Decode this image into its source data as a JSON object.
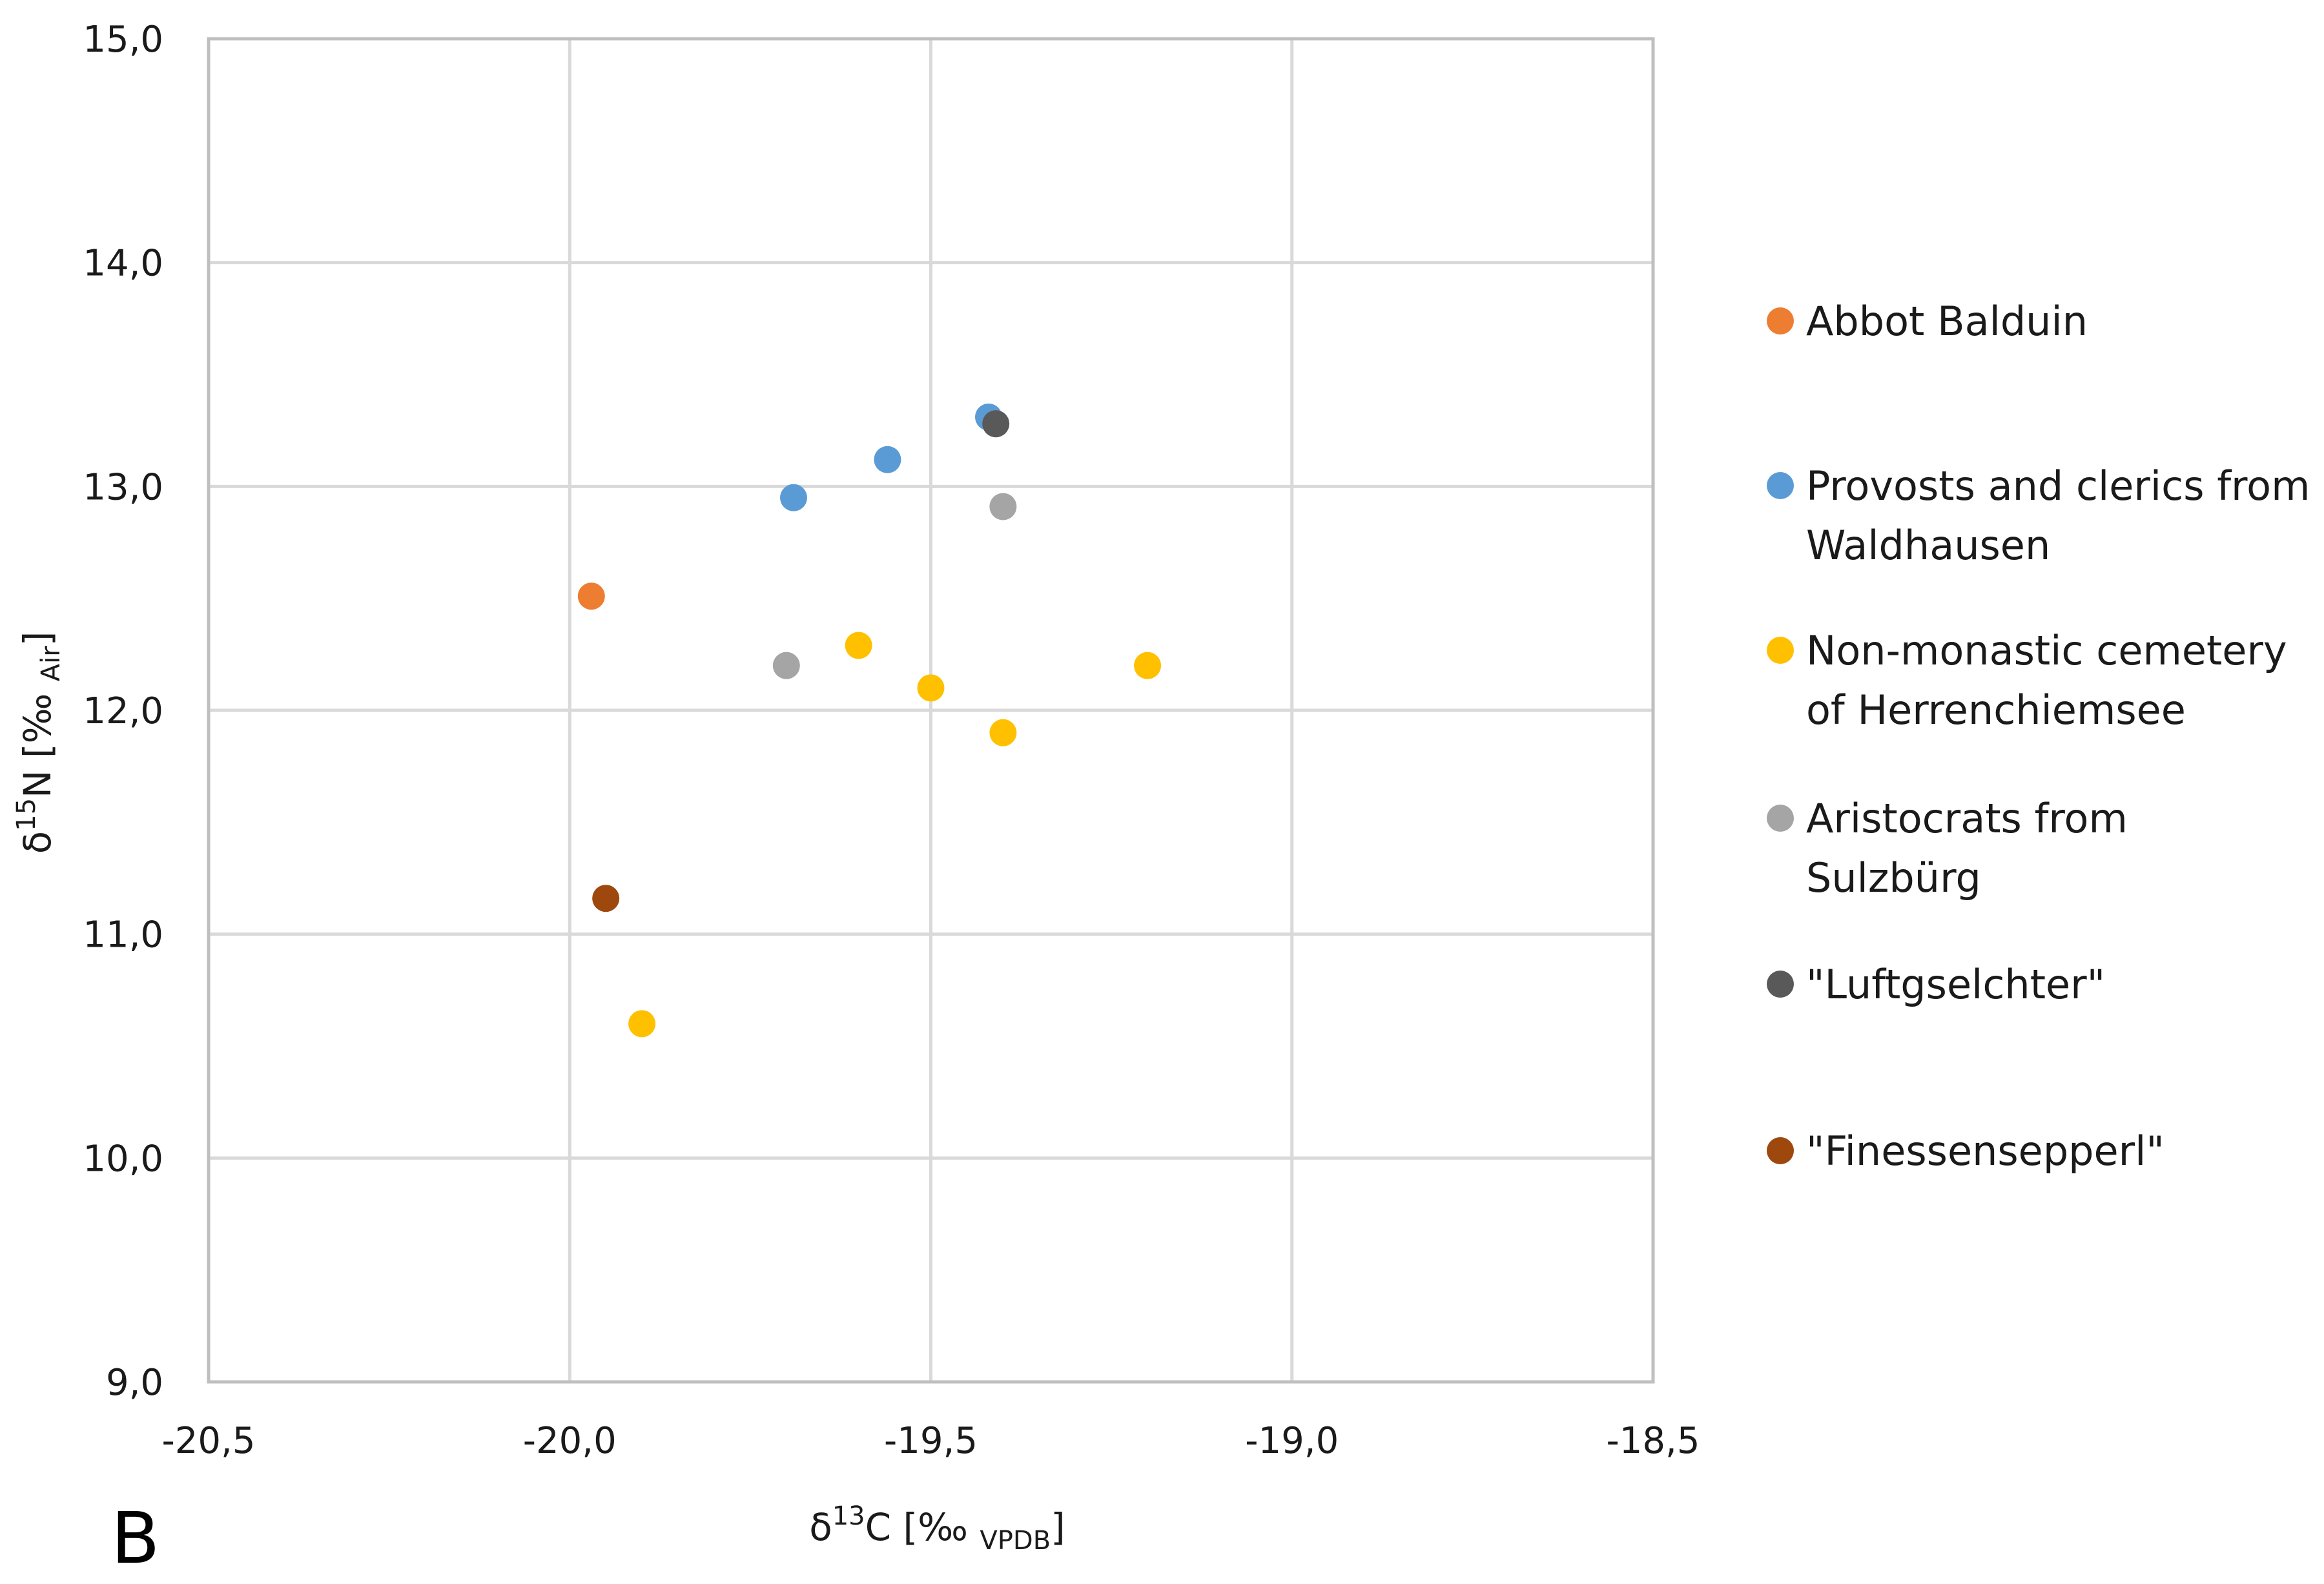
{
  "panel_label": "B",
  "chart_data": {
    "type": "scatter",
    "xlabel": {
      "main": "δ",
      "sup": "13",
      "mid": "C [‰ ",
      "sub": "VPDB",
      "end": "]"
    },
    "ylabel": {
      "main": "δ",
      "sup": "15",
      "mid": "N [‰ ",
      "sub": "Air",
      "end": "]"
    },
    "xlim": [
      -20.5,
      -18.5
    ],
    "ylim": [
      9.0,
      15.0
    ],
    "x_ticks": [
      -20.5,
      -20.0,
      -19.5,
      -19.0,
      -18.5
    ],
    "y_ticks": [
      9.0,
      10.0,
      11.0,
      12.0,
      13.0,
      14.0,
      15.0
    ],
    "x_tick_labels": [
      "-20,5",
      "-20,0",
      "-19,5",
      "-19,0",
      "-18,5"
    ],
    "y_tick_labels": [
      "9,0",
      "10,0",
      "11,0",
      "12,0",
      "13,0",
      "14,0",
      "15,0"
    ],
    "grid": true,
    "legend_position": "right",
    "series": [
      {
        "name": [
          "Abbot Balduin"
        ],
        "color": "#ED7D31",
        "points": [
          {
            "x": -19.97,
            "y": 12.51
          }
        ]
      },
      {
        "name": [
          "Provosts and clerics from",
          "Waldhausen"
        ],
        "color": "#5B9BD5",
        "points": [
          {
            "x": -19.69,
            "y": 12.95
          },
          {
            "x": -19.56,
            "y": 13.12
          },
          {
            "x": -19.42,
            "y": 13.31
          }
        ]
      },
      {
        "name": [
          "Non-monastic cemetery",
          "of Herrenchiemsee"
        ],
        "color": "#FFC000",
        "points": [
          {
            "x": -19.6,
            "y": 12.29
          },
          {
            "x": -19.5,
            "y": 12.1
          },
          {
            "x": -19.4,
            "y": 11.9
          },
          {
            "x": -19.2,
            "y": 12.2
          },
          {
            "x": -19.9,
            "y": 10.6
          }
        ]
      },
      {
        "name": [
          "Aristocrats from",
          "Sulzbürg"
        ],
        "color": "#A5A5A5",
        "points": [
          {
            "x": -19.7,
            "y": 12.2
          },
          {
            "x": -19.4,
            "y": 12.91
          }
        ]
      },
      {
        "name": [
          "\"Luftgselchter\""
        ],
        "color": "#595959",
        "points": [
          {
            "x": -19.41,
            "y": 13.28
          }
        ]
      },
      {
        "name": [
          "\"Finessensepperl\""
        ],
        "color": "#9E480E",
        "points": [
          {
            "x": -19.95,
            "y": 11.16
          }
        ]
      }
    ]
  }
}
